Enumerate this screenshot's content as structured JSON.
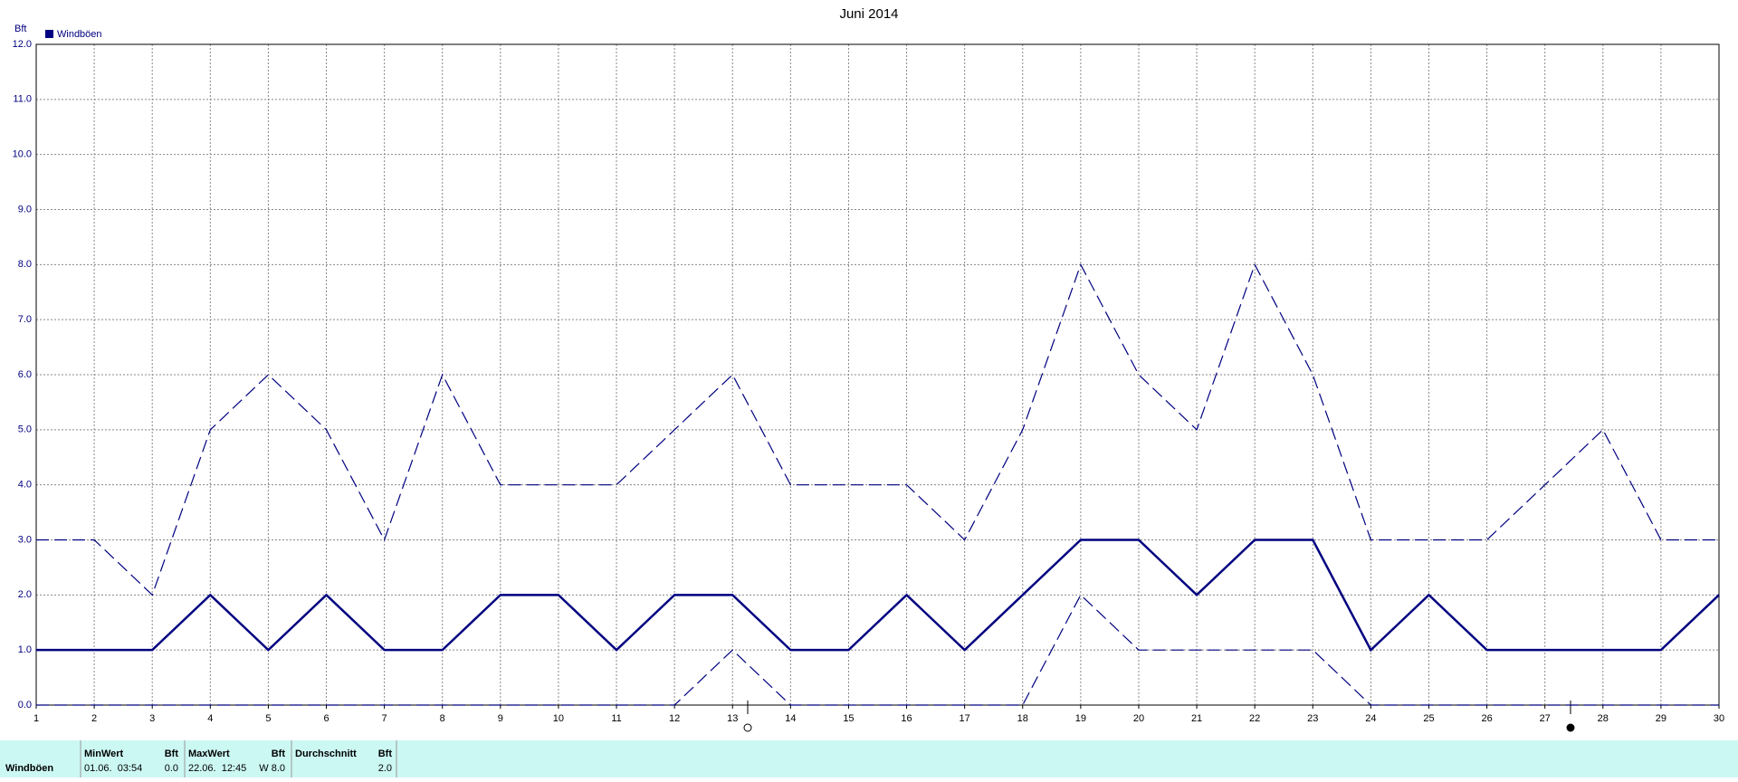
{
  "chart_data": {
    "type": "line",
    "title": "Juni 2014",
    "y_label": "Bft",
    "legend": "Windböen",
    "legend_color": "#000080",
    "grid": true,
    "x": [
      1,
      2,
      3,
      4,
      5,
      6,
      7,
      8,
      9,
      10,
      11,
      12,
      13,
      14,
      15,
      16,
      17,
      18,
      19,
      20,
      21,
      22,
      23,
      24,
      25,
      26,
      27,
      28,
      29,
      30
    ],
    "xlim": [
      1,
      30
    ],
    "xticks": [
      1,
      2,
      3,
      4,
      5,
      6,
      7,
      8,
      9,
      10,
      11,
      12,
      13,
      14,
      15,
      16,
      17,
      18,
      19,
      20,
      21,
      22,
      23,
      24,
      25,
      26,
      27,
      28,
      29,
      30
    ],
    "ylim": [
      0,
      12
    ],
    "yticks": [
      {
        "value": 0,
        "label": "0.0"
      },
      {
        "value": 1,
        "label": "1.0"
      },
      {
        "value": 2,
        "label": "2.0"
      },
      {
        "value": 3,
        "label": "3.0"
      },
      {
        "value": 4,
        "label": "4.0"
      },
      {
        "value": 5,
        "label": "5.0"
      },
      {
        "value": 6,
        "label": "6.0"
      },
      {
        "value": 7,
        "label": "7.0"
      },
      {
        "value": 8,
        "label": "8.0"
      },
      {
        "value": 9,
        "label": "9.0"
      },
      {
        "value": 10,
        "label": "10.0"
      },
      {
        "value": 11,
        "label": "11.0"
      },
      {
        "value": 12,
        "label": "12.0"
      }
    ],
    "series": [
      {
        "color": "#000080",
        "style": "solid",
        "values": [
          1,
          1,
          1,
          2,
          1,
          2,
          1,
          1,
          2,
          2,
          1,
          2,
          2,
          1,
          1,
          2,
          1,
          2,
          3,
          3,
          2,
          3,
          3,
          1,
          2,
          1,
          1,
          1,
          1,
          2
        ]
      },
      {
        "color": "#000080",
        "style": "dashed",
        "values": [
          3,
          3,
          2,
          5,
          6,
          5,
          3,
          6,
          4,
          4,
          4,
          5,
          6,
          4,
          4,
          4,
          3,
          5,
          8,
          6,
          5,
          8,
          6,
          3,
          3,
          3,
          4,
          5,
          3,
          3
        ]
      },
      {
        "color": "#000080",
        "style": "dashed",
        "values": [
          0,
          0,
          0,
          0,
          0,
          0,
          0,
          0,
          0,
          0,
          0,
          0,
          1,
          0,
          0,
          0,
          0,
          0,
          2,
          1,
          1,
          1,
          1,
          0,
          0,
          0,
          0,
          0,
          0,
          0
        ]
      }
    ]
  },
  "summary": {
    "label": "Windböen",
    "columns": [
      {
        "header": "MinWert",
        "unit": "Bft",
        "time": "01.06.  03:54",
        "value": "0.0"
      },
      {
        "header": "MaxWert",
        "unit": "Bft",
        "time": "22.06.  12:45",
        "value": "W 8.0"
      },
      {
        "header": "Durchschnitt",
        "unit": "Bft",
        "value": "2.0"
      }
    ]
  }
}
